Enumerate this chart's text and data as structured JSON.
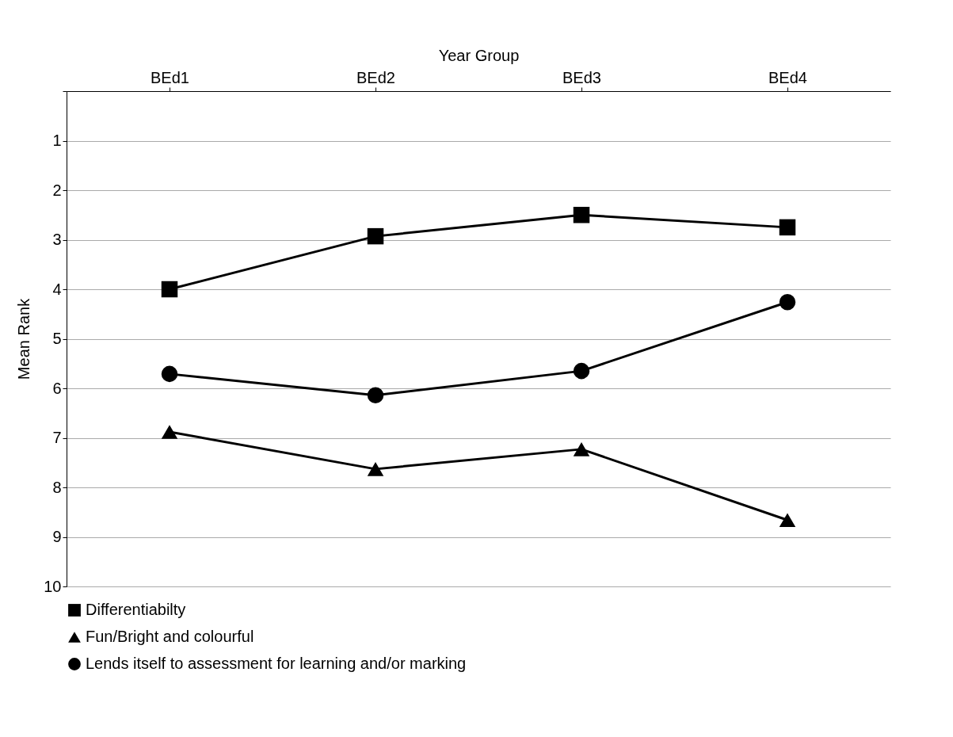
{
  "chart_data": {
    "type": "line",
    "xlabel": "Year Group",
    "ylabel": "Mean Rank",
    "categories": [
      "BEd1",
      "BEd2",
      "BEd3",
      "BEd4"
    ],
    "series": [
      {
        "name": "Differentiabilty",
        "color": "#000000",
        "marker": "square",
        "values": [
          4.0,
          2.93,
          2.5,
          2.75
        ]
      },
      {
        "name": "Fun/Bright and colourful",
        "color": "#000000",
        "marker": "triangle",
        "values": [
          6.88,
          7.63,
          7.23,
          8.66
        ]
      },
      {
        "name": "Lends itself to assessment for learning and/or marking",
        "color": "#000000",
        "marker": "circle",
        "values": [
          5.71,
          6.14,
          5.65,
          4.26
        ]
      }
    ],
    "ylim": [
      10,
      0
    ],
    "yticks": [
      {
        "value": 0,
        "label": null
      },
      1,
      2,
      3,
      4,
      5,
      6,
      7,
      8,
      9,
      10
    ],
    "grid": "y",
    "legend": "bottom",
    "line_style": "solid"
  }
}
